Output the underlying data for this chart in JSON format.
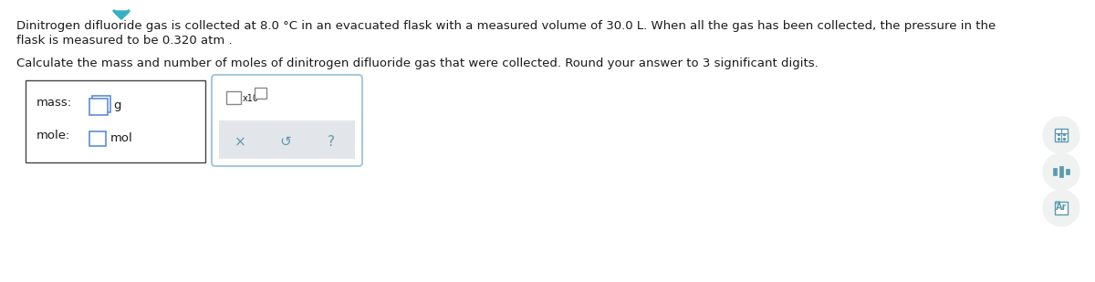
{
  "line1": "Dinitrogen difluoride gas is collected at 8.0 °C in an evacuated flask with a measured volume of 30.0 L. When all the gas has been collected, the pressure in the",
  "line2": "flask is measured to be 0.320 atm .",
  "line3": "Calculate the mass and number of moles of dinitrogen difluoride gas that were collected. Round your answer to 3 significant digits.",
  "mass_label": "mass:",
  "mass_unit": "g",
  "mole_label": "mole:",
  "mole_unit": "mol",
  "x10_label": "x10",
  "symbols": [
    "×",
    "↺",
    "?"
  ],
  "bg_color": "#ffffff",
  "text_color": "#1a1a1a",
  "box_border_color": "#333333",
  "blue_border": "#5b8dd9",
  "popup_border": "#a8c8dc",
  "popup_gray": "#e2e6ea",
  "icon_circle": "#efefef",
  "icon_color": "#5a9aac",
  "font_size_body": 9.5,
  "font_size_label": 9.5,
  "font_size_symbol": 11
}
